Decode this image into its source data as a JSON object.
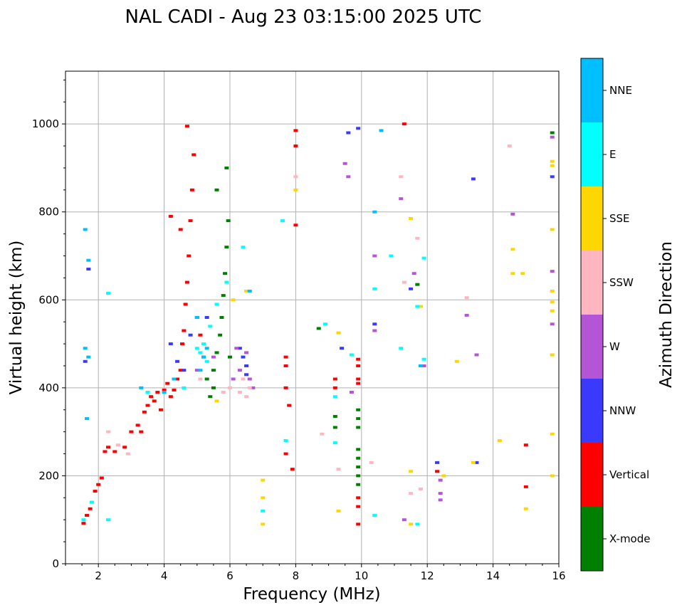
{
  "chart_data": {
    "type": "scatter",
    "title": "NAL CADI - Aug 23 03:15:00 2025 UTC",
    "xlabel": "Frequency (MHz)",
    "ylabel": "Virtual height (km)",
    "xlim": [
      1,
      16
    ],
    "ylim": [
      0,
      1120
    ],
    "xticks": [
      2,
      4,
      6,
      8,
      10,
      12,
      14,
      16
    ],
    "yticks": [
      0,
      200,
      400,
      600,
      800,
      1000
    ],
    "grid": true,
    "colorbar": {
      "label": "Azimuth Direction",
      "entries": [
        {
          "name": "X-mode",
          "color": "#008000"
        },
        {
          "name": "Vertical",
          "color": "#ff0000"
        },
        {
          "name": "NNW",
          "color": "#3a3aff"
        },
        {
          "name": "W",
          "color": "#b455d6"
        },
        {
          "name": "SSW",
          "color": "#ffb6c1"
        },
        {
          "name": "SSE",
          "color": "#ffd700"
        },
        {
          "name": "E",
          "color": "#00ffff"
        },
        {
          "name": "NNE",
          "color": "#00bfff"
        }
      ]
    },
    "series": [
      {
        "name": "Vertical",
        "points": [
          [
            1.55,
            92
          ],
          [
            1.65,
            110
          ],
          [
            1.75,
            125
          ],
          [
            1.9,
            165
          ],
          [
            2.0,
            180
          ],
          [
            2.1,
            195
          ],
          [
            2.2,
            255
          ],
          [
            2.3,
            265
          ],
          [
            2.5,
            255
          ],
          [
            2.8,
            265
          ],
          [
            3.0,
            300
          ],
          [
            3.2,
            315
          ],
          [
            3.3,
            300
          ],
          [
            3.4,
            345
          ],
          [
            3.5,
            360
          ],
          [
            3.6,
            380
          ],
          [
            3.7,
            370
          ],
          [
            3.8,
            390
          ],
          [
            3.9,
            350
          ],
          [
            4.0,
            395
          ],
          [
            4.1,
            410
          ],
          [
            4.2,
            380
          ],
          [
            4.3,
            395
          ],
          [
            4.4,
            420
          ],
          [
            4.5,
            440
          ],
          [
            4.55,
            500
          ],
          [
            4.6,
            530
          ],
          [
            4.65,
            590
          ],
          [
            4.7,
            640
          ],
          [
            4.75,
            700
          ],
          [
            4.8,
            780
          ],
          [
            4.85,
            850
          ],
          [
            4.9,
            930
          ],
          [
            4.7,
            995
          ],
          [
            5.0,
            560
          ],
          [
            5.1,
            520
          ],
          [
            5.2,
            470
          ],
          [
            4.5,
            760
          ],
          [
            4.2,
            790
          ],
          [
            7.7,
            470
          ],
          [
            7.7,
            450
          ],
          [
            7.7,
            400
          ],
          [
            7.8,
            360
          ],
          [
            7.7,
            250
          ],
          [
            7.9,
            215
          ],
          [
            8.0,
            770
          ],
          [
            8.0,
            950
          ],
          [
            8.0,
            985
          ],
          [
            9.2,
            420
          ],
          [
            9.2,
            400
          ],
          [
            9.9,
            465
          ],
          [
            9.9,
            450
          ],
          [
            9.9,
            420
          ],
          [
            9.9,
            410
          ],
          [
            9.9,
            150
          ],
          [
            9.9,
            130
          ],
          [
            9.9,
            90
          ],
          [
            11.3,
            1000
          ],
          [
            12.3,
            210
          ],
          [
            15.0,
            175
          ],
          [
            15.0,
            270
          ]
        ]
      },
      {
        "name": "X-mode",
        "points": [
          [
            5.5,
            440
          ],
          [
            5.6,
            480
          ],
          [
            5.7,
            520
          ],
          [
            5.75,
            560
          ],
          [
            5.8,
            610
          ],
          [
            5.85,
            660
          ],
          [
            5.9,
            720
          ],
          [
            5.95,
            780
          ],
          [
            5.5,
            400
          ],
          [
            5.4,
            380
          ],
          [
            5.3,
            420
          ],
          [
            5.6,
            850
          ],
          [
            5.9,
            900
          ],
          [
            6.0,
            470
          ],
          [
            8.7,
            535
          ],
          [
            9.2,
            335
          ],
          [
            9.2,
            310
          ],
          [
            9.9,
            350
          ],
          [
            9.9,
            330
          ],
          [
            9.9,
            310
          ],
          [
            9.9,
            260
          ],
          [
            9.9,
            240
          ],
          [
            9.9,
            220
          ],
          [
            9.9,
            200
          ],
          [
            9.9,
            180
          ],
          [
            11.7,
            635
          ],
          [
            15.8,
            980
          ]
        ]
      },
      {
        "name": "NNW",
        "points": [
          [
            1.6,
            460
          ],
          [
            1.7,
            670
          ],
          [
            4.2,
            500
          ],
          [
            4.4,
            460
          ],
          [
            4.6,
            440
          ],
          [
            4.8,
            520
          ],
          [
            5.3,
            560
          ],
          [
            6.3,
            490
          ],
          [
            6.4,
            470
          ],
          [
            6.5,
            450
          ],
          [
            6.5,
            430
          ],
          [
            9.6,
            980
          ],
          [
            9.9,
            990
          ],
          [
            9.4,
            490
          ],
          [
            10.4,
            545
          ],
          [
            12.3,
            230
          ],
          [
            13.4,
            875
          ],
          [
            13.5,
            230
          ],
          [
            15.8,
            880
          ],
          [
            11.5,
            625
          ]
        ]
      },
      {
        "name": "W",
        "points": [
          [
            5.0,
            440
          ],
          [
            5.5,
            470
          ],
          [
            6.2,
            490
          ],
          [
            6.3,
            440
          ],
          [
            6.5,
            480
          ],
          [
            6.6,
            420
          ],
          [
            6.7,
            400
          ],
          [
            6.1,
            420
          ],
          [
            9.5,
            910
          ],
          [
            9.6,
            880
          ],
          [
            10.4,
            700
          ],
          [
            10.4,
            530
          ],
          [
            11.2,
            830
          ],
          [
            11.6,
            660
          ],
          [
            11.9,
            450
          ],
          [
            12.4,
            190
          ],
          [
            12.4,
            160
          ],
          [
            12.4,
            145
          ],
          [
            13.2,
            565
          ],
          [
            13.5,
            475
          ],
          [
            14.6,
            795
          ],
          [
            15.8,
            970
          ],
          [
            15.8,
            665
          ],
          [
            15.8,
            545
          ],
          [
            11.3,
            100
          ],
          [
            9.7,
            390
          ]
        ]
      },
      {
        "name": "SSW",
        "points": [
          [
            2.3,
            300
          ],
          [
            2.6,
            270
          ],
          [
            2.9,
            250
          ],
          [
            5.8,
            390
          ],
          [
            6.0,
            400
          ],
          [
            6.3,
            390
          ],
          [
            6.5,
            380
          ],
          [
            6.6,
            400
          ],
          [
            6.4,
            420
          ],
          [
            5.1,
            420
          ],
          [
            8.0,
            880
          ],
          [
            8.8,
            295
          ],
          [
            10.3,
            230
          ],
          [
            11.2,
            880
          ],
          [
            11.3,
            640
          ],
          [
            11.5,
            160
          ],
          [
            11.7,
            740
          ],
          [
            11.8,
            170
          ],
          [
            13.2,
            605
          ],
          [
            14.5,
            950
          ],
          [
            9.3,
            215
          ]
        ]
      },
      {
        "name": "SSE",
        "points": [
          [
            5.6,
            370
          ],
          [
            6.1,
            600
          ],
          [
            6.5,
            620
          ],
          [
            7.0,
            190
          ],
          [
            7.0,
            150
          ],
          [
            7.0,
            90
          ],
          [
            8.0,
            850
          ],
          [
            9.3,
            525
          ],
          [
            9.3,
            120
          ],
          [
            11.5,
            785
          ],
          [
            11.5,
            210
          ],
          [
            11.5,
            90
          ],
          [
            11.8,
            585
          ],
          [
            12.5,
            200
          ],
          [
            12.9,
            460
          ],
          [
            13.4,
            230
          ],
          [
            14.2,
            280
          ],
          [
            14.6,
            715
          ],
          [
            14.6,
            660
          ],
          [
            14.9,
            660
          ],
          [
            15.0,
            125
          ],
          [
            15.8,
            915
          ],
          [
            15.8,
            905
          ],
          [
            15.8,
            760
          ],
          [
            15.8,
            620
          ],
          [
            15.8,
            595
          ],
          [
            15.8,
            575
          ],
          [
            15.8,
            475
          ],
          [
            15.8,
            295
          ],
          [
            15.8,
            200
          ]
        ]
      },
      {
        "name": "E",
        "points": [
          [
            1.55,
            100
          ],
          [
            1.8,
            140
          ],
          [
            2.3,
            100
          ],
          [
            2.3,
            615
          ],
          [
            3.5,
            390
          ],
          [
            4.6,
            400
          ],
          [
            5.0,
            490
          ],
          [
            5.1,
            480
          ],
          [
            5.2,
            500
          ],
          [
            5.3,
            460
          ],
          [
            5.4,
            540
          ],
          [
            5.6,
            590
          ],
          [
            5.9,
            640
          ],
          [
            6.4,
            720
          ],
          [
            7.0,
            120
          ],
          [
            7.6,
            780
          ],
          [
            7.7,
            280
          ],
          [
            8.9,
            545
          ],
          [
            9.2,
            380
          ],
          [
            9.2,
            275
          ],
          [
            9.7,
            475
          ],
          [
            10.4,
            110
          ],
          [
            10.4,
            625
          ],
          [
            10.9,
            700
          ],
          [
            11.2,
            490
          ],
          [
            11.7,
            585
          ],
          [
            11.9,
            695
          ],
          [
            11.9,
            465
          ],
          [
            11.7,
            90
          ]
        ]
      },
      {
        "name": "NNE",
        "points": [
          [
            1.6,
            760
          ],
          [
            1.7,
            690
          ],
          [
            1.6,
            490
          ],
          [
            1.7,
            470
          ],
          [
            1.65,
            330
          ],
          [
            3.3,
            400
          ],
          [
            4.0,
            390
          ],
          [
            4.3,
            420
          ],
          [
            5.0,
            560
          ],
          [
            5.1,
            440
          ],
          [
            5.2,
            470
          ],
          [
            5.3,
            490
          ],
          [
            10.4,
            800
          ],
          [
            10.6,
            985
          ],
          [
            11.8,
            450
          ],
          [
            6.6,
            620
          ]
        ]
      }
    ]
  }
}
